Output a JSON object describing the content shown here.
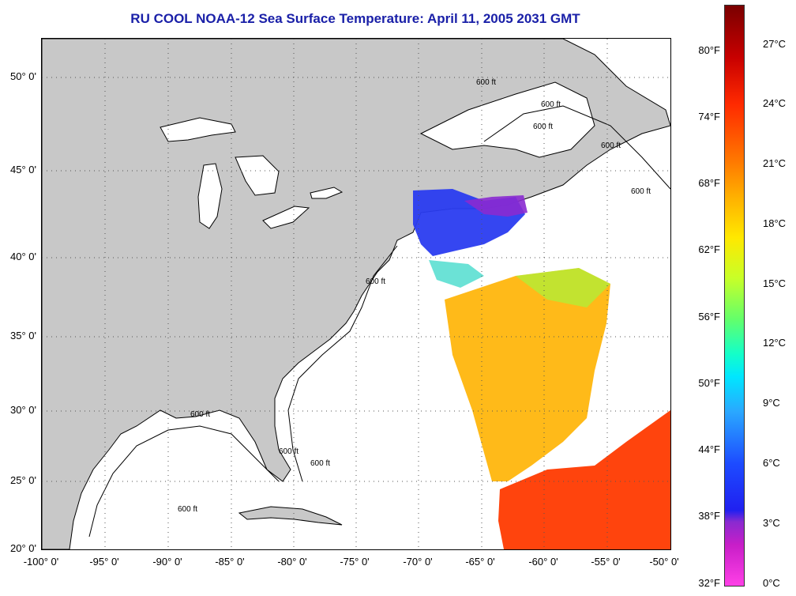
{
  "title": "RU COOL  NOAA-12  Sea Surface Temperature:  April 11, 2005 2031 GMT",
  "map": {
    "lat_labels": [
      "50° 0'",
      "45° 0'",
      "40° 0'",
      "35° 0'",
      "30° 0'",
      "25° 0'",
      "20° 0'"
    ],
    "lon_labels": [
      "-100° 0'",
      "-95° 0'",
      "-90° 0'",
      "-85° 0'",
      "-80° 0'",
      "-75° 0'",
      "-70° 0'",
      "-65° 0'",
      "-60° 0'",
      "-55° 0'",
      "-50° 0'"
    ],
    "contour_labels": [
      "600 ft",
      "600 ft",
      "600 ft",
      "600 ft",
      "600 ft",
      "600 ft",
      "600 ft",
      "600 ft",
      "600 ft",
      "600 ft"
    ],
    "land_color": "#c8c8c8",
    "water_color": "#ffffff"
  },
  "colorbar": {
    "fahrenheit_labels": [
      "80°F",
      "74°F",
      "68°F",
      "62°F",
      "56°F",
      "50°F",
      "44°F",
      "38°F",
      "32°F"
    ],
    "celsius_labels": [
      "27°C",
      "24°C",
      "21°C",
      "18°C",
      "15°C",
      "12°C",
      "9°C",
      "6°C",
      "3°C",
      "0°C"
    ]
  }
}
